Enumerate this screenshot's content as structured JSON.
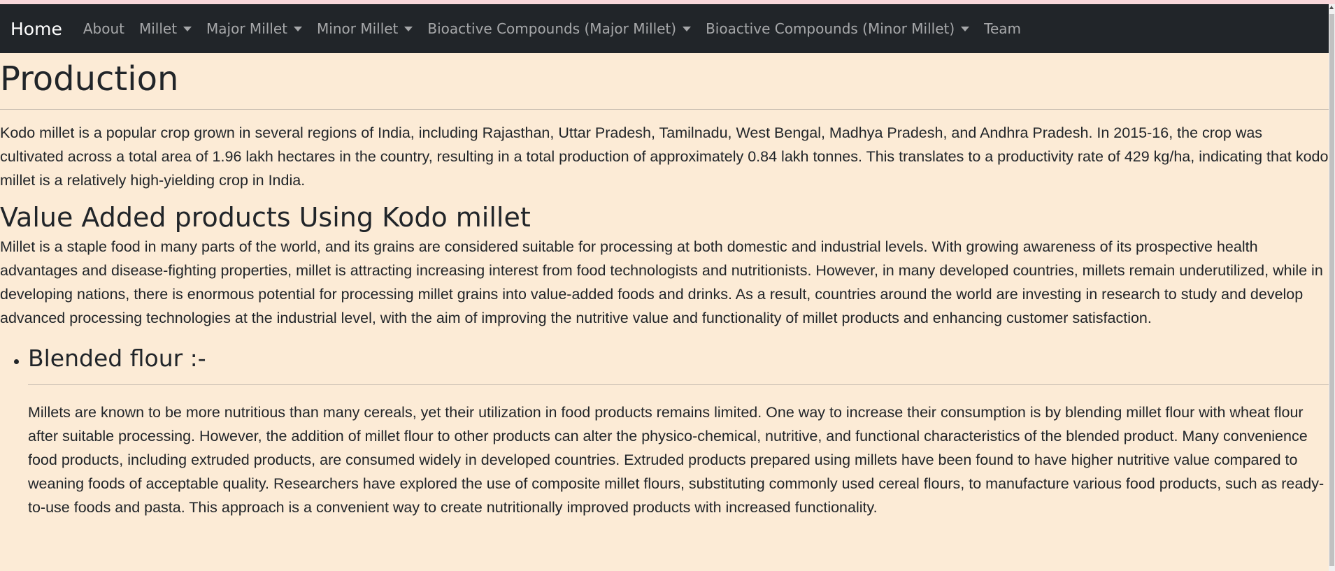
{
  "navbar": {
    "brand": "Home",
    "items": [
      {
        "label": "About",
        "dropdown": false
      },
      {
        "label": "Millet",
        "dropdown": true
      },
      {
        "label": "Major Millet",
        "dropdown": true
      },
      {
        "label": "Minor Millet",
        "dropdown": true
      },
      {
        "label": "Bioactive Compounds (Major Millet)",
        "dropdown": true
      },
      {
        "label": "Bioactive Compounds (Minor Millet)",
        "dropdown": true
      },
      {
        "label": "Team",
        "dropdown": false
      }
    ]
  },
  "main": {
    "title": "Production",
    "production_text": "Kodo millet is a popular crop grown in several regions of India, including Rajasthan, Uttar Pradesh, Tamilnadu, West Bengal, Madhya Pradesh, and Andhra Pradesh. In 2015-16, the crop was cultivated across a total area of 1.96 lakh hectares in the country, resulting in a total production of approximately 0.84 lakh tonnes. This translates to a productivity rate of 429 kg/ha, indicating that kodo millet is a relatively high-yielding crop in India.",
    "value_added_heading": "Value Added products Using Kodo millet",
    "value_added_text": "Millet is a staple food in many parts of the world, and its grains are considered suitable for processing at both domestic and industrial levels. With growing awareness of its prospective health advantages and disease-fighting properties, millet is attracting increasing interest from food technologists and nutritionists. However, in many developed countries, millets remain underutilized, while in developing nations, there is enormous potential for processing millet grains into value-added foods and drinks. As a result, countries around the world are investing in research to study and develop advanced processing technologies at the industrial level, with the aim of improving the nutritive value and functionality of millet products and enhancing customer satisfaction.",
    "products": [
      {
        "heading": "Blended flour :-",
        "text": "Millets are known to be more nutritious than many cereals, yet their utilization in food products remains limited. One way to increase their consumption is by blending millet flour with wheat flour after suitable processing. However, the addition of millet flour to other products can alter the physico-chemical, nutritive, and functional characteristics of the blended product. Many convenience food products, including extruded products, are consumed widely in developed countries. Extruded products prepared using millets have been found to have higher nutritive value compared to weaning foods of acceptable quality. Researchers have explored the use of composite millet flours, substituting commonly used cereal flours, to manufacture various food products, such as ready-to-use foods and pasta. This approach is a convenient way to create nutritionally improved products with increased functionality."
      }
    ]
  }
}
